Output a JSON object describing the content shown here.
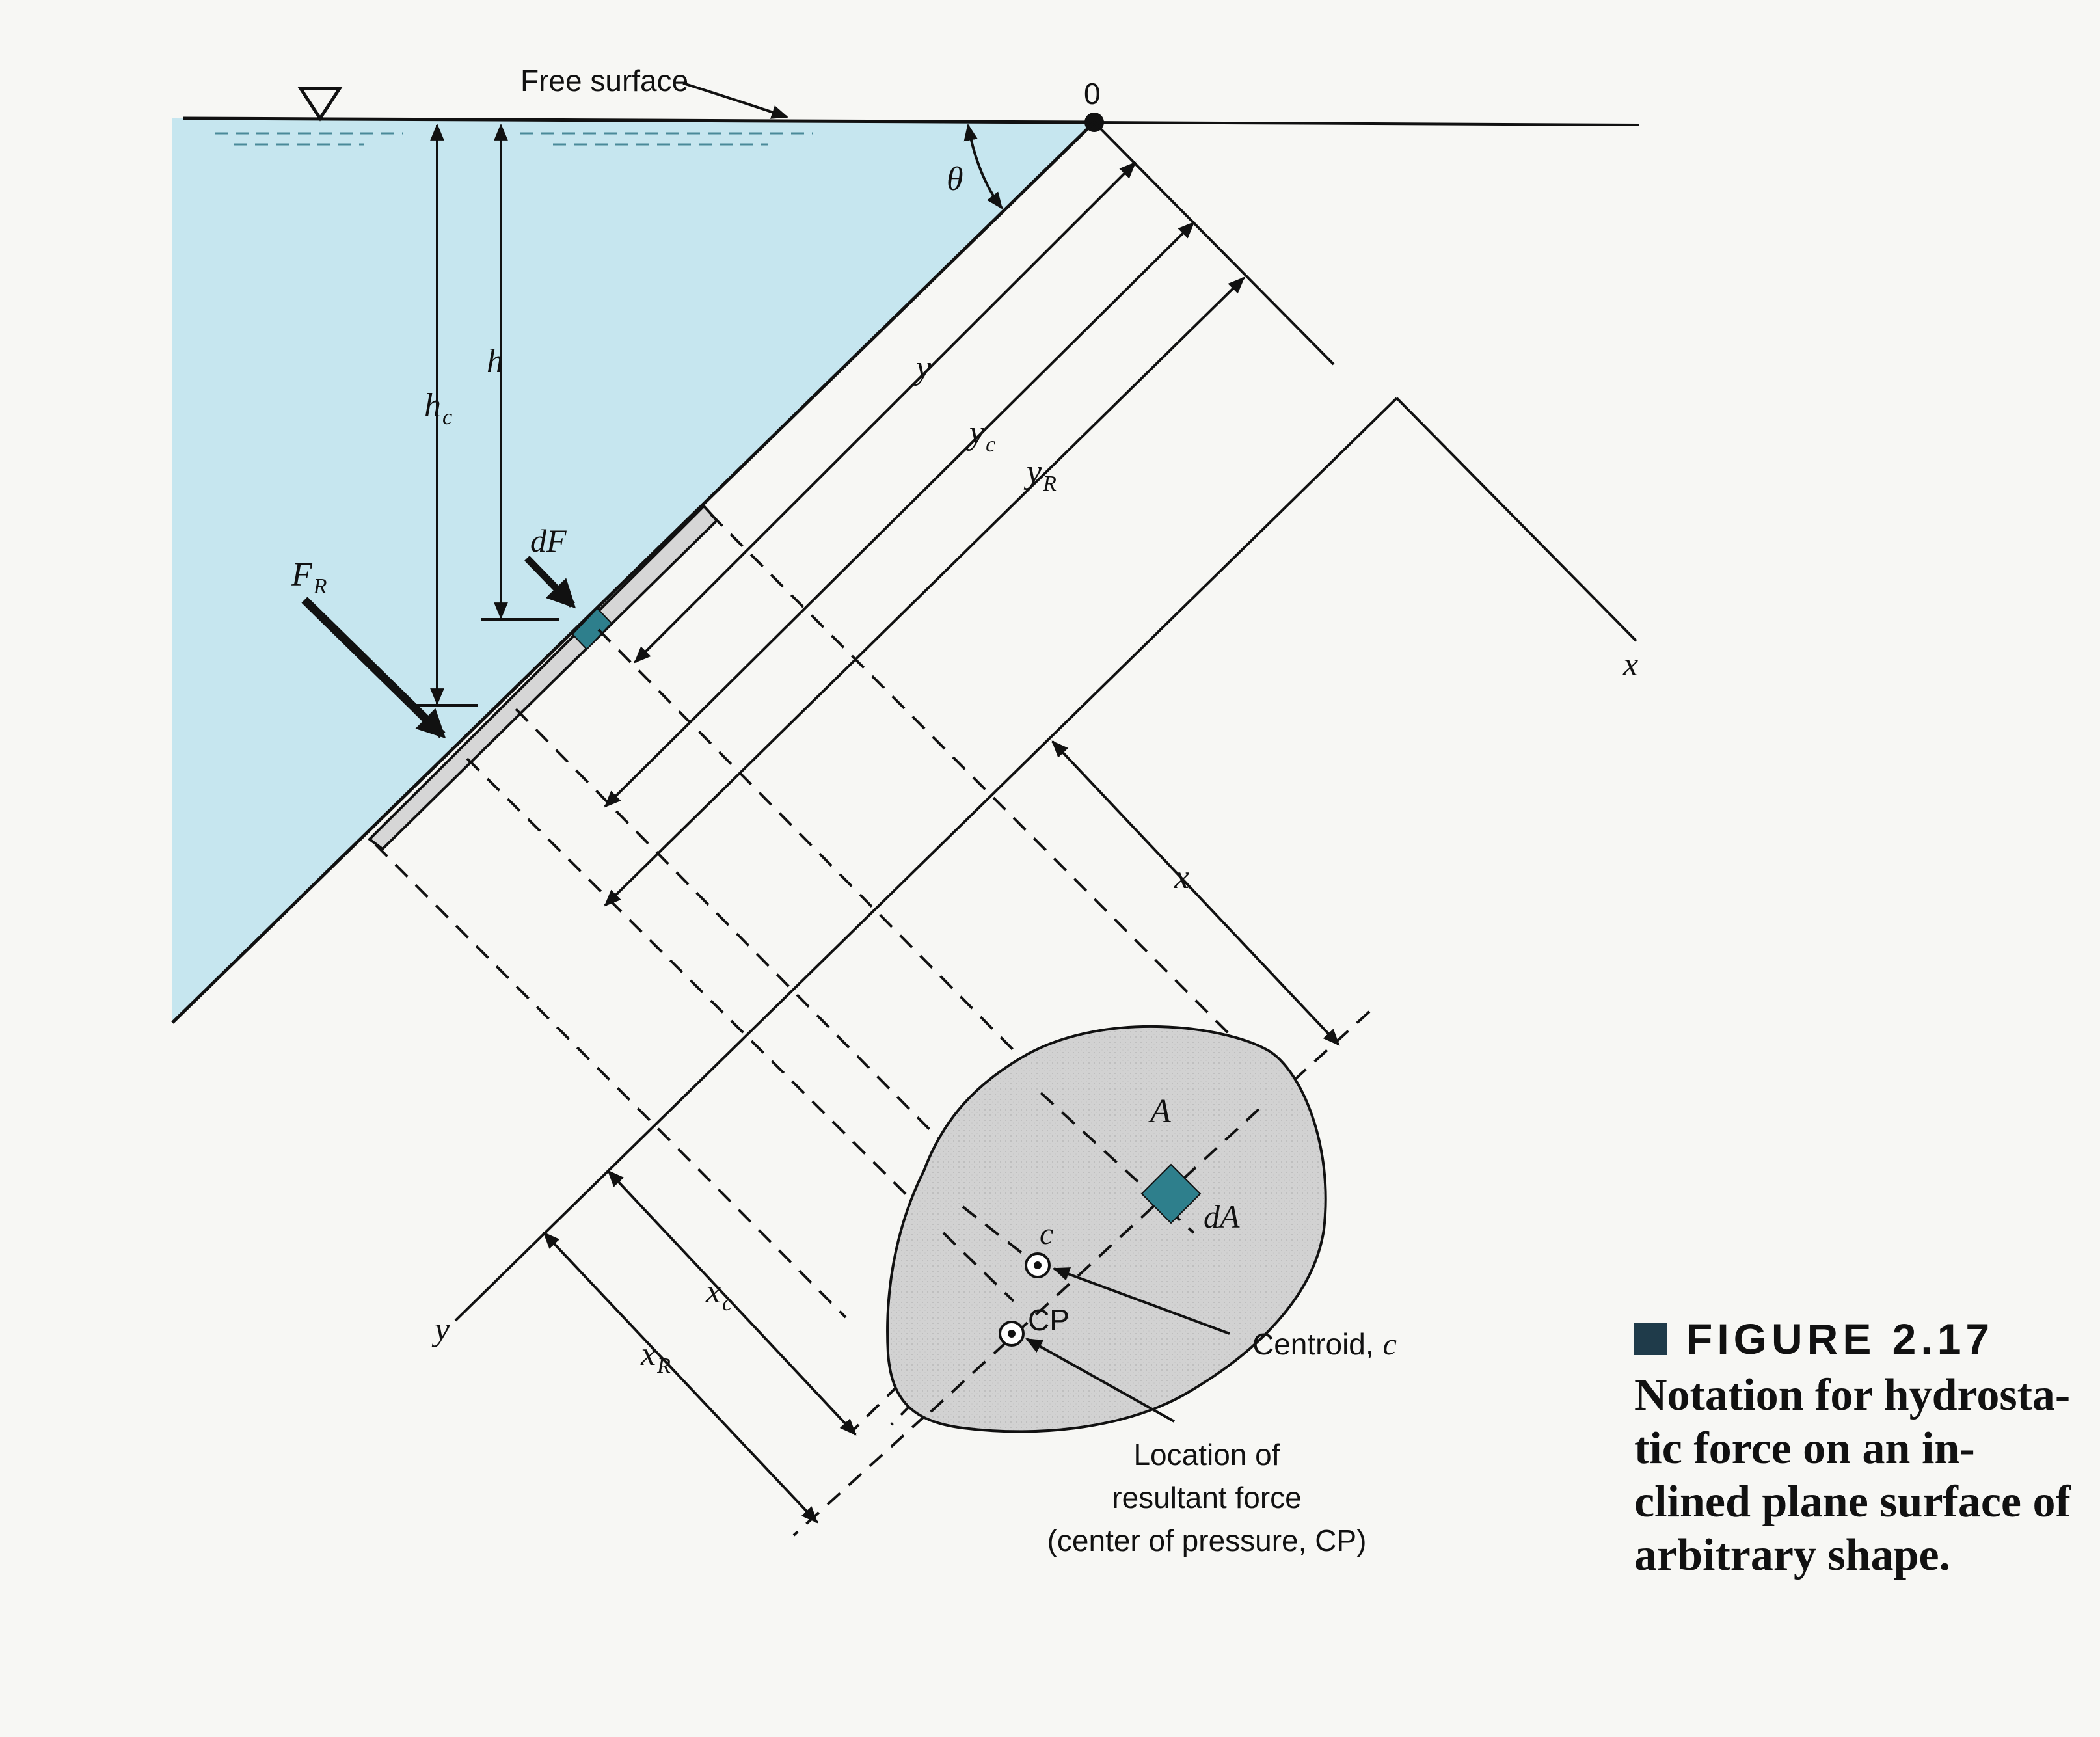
{
  "diagram": {
    "free_surface_label": "Free surface",
    "origin_label": "0",
    "theta_label": "θ",
    "h_label": "h",
    "hc_label": "h",
    "hc_sub": "c",
    "y_label": "y",
    "yc_label": "y",
    "yc_sub": "c",
    "yR_label": "y",
    "yR_sub": "R",
    "dF_label": "dF",
    "FR_label": "F",
    "FR_sub": "R",
    "x_axis_label": "x",
    "x_dim_label": "x",
    "y_axis_label": "y",
    "xc_label": "x",
    "xc_sub": "c",
    "xR_label": "x",
    "xR_sub": "R",
    "A_label": "A",
    "dA_label": "dA",
    "c_label": "c",
    "CP_label": "CP",
    "centroid_callout": "Centroid,",
    "centroid_callout_var": "c",
    "location_lines": [
      "Location of",
      "resultant force",
      "(center of pressure, CP)"
    ]
  },
  "caption": {
    "heading": "FIGURE 2.17",
    "lines": [
      "Notation for hydrosta-",
      "tic force on an in-",
      "clined plane surface of",
      "arbitrary shape."
    ]
  },
  "colors": {
    "water": "#c6e6ef",
    "plate": "#d6d6d6",
    "element": "#2e7f8c",
    "ink": "#111111"
  }
}
